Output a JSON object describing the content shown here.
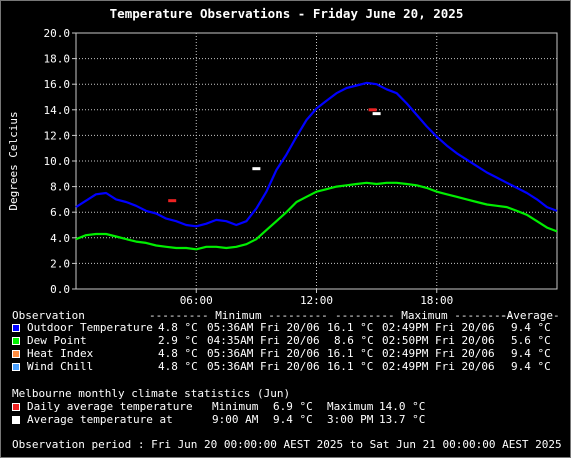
{
  "title": "Temperature Observations - Friday June 20, 2025",
  "ylabel": "Degrees Celcius",
  "colors": {
    "outdoor": "#0000ff",
    "dewpoint": "#00ee00",
    "heat_index": "#ff8c40",
    "wind_chill": "#4aa0ff",
    "daily_avg": "#ee2222",
    "avg_at": "#ffffff",
    "grid": "#c8c8c8"
  },
  "chart_data": {
    "type": "line",
    "title": "Temperature Observations - Friday June 20, 2025",
    "xlabel": "",
    "ylabel": "Degrees Celcius",
    "xlim": [
      0,
      24
    ],
    "ylim": [
      0,
      20
    ],
    "yticks": [
      "0.0",
      "2.0",
      "4.0",
      "6.0",
      "8.0",
      "10.0",
      "12.0",
      "14.0",
      "16.0",
      "18.0",
      "20.0"
    ],
    "xticks": [
      {
        "x": 6,
        "label": "06:00"
      },
      {
        "x": 12,
        "label": "12:00"
      },
      {
        "x": 18,
        "label": "18:00"
      }
    ],
    "grid": true,
    "series": [
      {
        "name": "Outdoor Temperature",
        "color_key": "outdoor",
        "x": [
          0,
          0.5,
          1,
          1.5,
          2,
          2.5,
          3,
          3.5,
          4,
          4.5,
          5,
          5.5,
          6,
          6.5,
          7,
          7.5,
          8,
          8.5,
          9,
          9.5,
          10,
          10.5,
          11,
          11.5,
          12,
          12.5,
          13,
          13.5,
          14,
          14.5,
          15,
          15.5,
          16,
          16.5,
          17,
          17.5,
          18,
          18.5,
          19,
          19.5,
          20,
          20.5,
          21,
          21.5,
          22,
          22.5,
          23,
          23.5,
          24
        ],
        "y": [
          6.4,
          6.9,
          7.4,
          7.5,
          7.0,
          6.8,
          6.5,
          6.1,
          5.9,
          5.5,
          5.3,
          5.0,
          4.9,
          5.1,
          5.4,
          5.3,
          5.0,
          5.3,
          6.3,
          7.6,
          9.3,
          10.5,
          11.9,
          13.2,
          14.1,
          14.7,
          15.3,
          15.7,
          15.9,
          16.1,
          16.0,
          15.6,
          15.3,
          14.5,
          13.6,
          12.7,
          11.9,
          11.2,
          10.6,
          10.1,
          9.6,
          9.1,
          8.7,
          8.3,
          7.9,
          7.5,
          7.0,
          6.4,
          6.1
        ]
      },
      {
        "name": "Dew Point",
        "color_key": "dewpoint",
        "x": [
          0,
          0.5,
          1,
          1.5,
          2,
          2.5,
          3,
          3.5,
          4,
          4.5,
          5,
          5.5,
          6,
          6.5,
          7,
          7.5,
          8,
          8.5,
          9,
          9.5,
          10,
          10.5,
          11,
          11.5,
          12,
          12.5,
          13,
          13.5,
          14,
          14.5,
          15,
          15.5,
          16,
          16.5,
          17,
          17.5,
          18,
          18.5,
          19,
          19.5,
          20,
          20.5,
          21,
          21.5,
          22,
          22.5,
          23,
          23.5,
          24
        ],
        "y": [
          3.9,
          4.2,
          4.3,
          4.3,
          4.1,
          3.9,
          3.7,
          3.6,
          3.4,
          3.3,
          3.2,
          3.2,
          3.1,
          3.3,
          3.3,
          3.2,
          3.3,
          3.5,
          3.9,
          4.6,
          5.3,
          6.0,
          6.8,
          7.2,
          7.6,
          7.8,
          8.0,
          8.1,
          8.2,
          8.3,
          8.2,
          8.3,
          8.3,
          8.2,
          8.1,
          7.9,
          7.6,
          7.4,
          7.2,
          7.0,
          6.8,
          6.6,
          6.5,
          6.4,
          6.1,
          5.8,
          5.3,
          4.8,
          4.5
        ]
      },
      {
        "name": "Heat Index",
        "color_key": "heat_index",
        "x": [],
        "y": []
      },
      {
        "name": "Wind Chill",
        "color_key": "wind_chill",
        "x": [],
        "y": []
      }
    ],
    "markers": [
      {
        "name": "Daily average temperature",
        "color_key": "daily_avg",
        "points": [
          {
            "x": 4.8,
            "y": 6.9
          },
          {
            "x": 14.8,
            "y": 14.0
          }
        ]
      },
      {
        "name": "Average temperature at",
        "color_key": "avg_at",
        "points": [
          {
            "x": 9.0,
            "y": 9.4
          },
          {
            "x": 15.0,
            "y": 13.7
          }
        ]
      }
    ]
  },
  "table": {
    "header": {
      "obs": "Observation",
      "min": "--------- Minimum ---------",
      "max": "--------- Maximum ---------",
      "avg": "-Average-"
    },
    "rows": [
      {
        "label": "Outdoor Temperature",
        "color_key": "outdoor",
        "min_val": "4.8 °C",
        "min_time": "05:36AM Fri 20/06",
        "max_val": "16.1 °C",
        "max_time": "02:49PM Fri 20/06",
        "avg": "9.4 °C"
      },
      {
        "label": "Dew Point",
        "color_key": "dewpoint",
        "min_val": "2.9 °C",
        "min_time": "04:35AM Fri 20/06",
        "max_val": "8.6 °C",
        "max_time": "02:50PM Fri 20/06",
        "avg": "5.6 °C"
      },
      {
        "label": "Heat Index",
        "color_key": "heat_index",
        "min_val": "4.8 °C",
        "min_time": "05:36AM Fri 20/06",
        "max_val": "16.1 °C",
        "max_time": "02:49PM Fri 20/06",
        "avg": "9.4 °C"
      },
      {
        "label": "Wind Chill",
        "color_key": "wind_chill",
        "min_val": "4.8 °C",
        "min_time": "05:36AM Fri 20/06",
        "max_val": "16.1 °C",
        "max_time": "02:49PM Fri 20/06",
        "avg": "9.4 °C"
      }
    ]
  },
  "climate": {
    "heading": "Melbourne monthly climate statistics (Jun)",
    "daily": {
      "label": "Daily average temperature",
      "min_label": "Minimum",
      "min": "6.9 °C",
      "max_label": "Maximum",
      "max": "14.0 °C"
    },
    "at": {
      "label": "Average temperature at",
      "t1": "9:00 AM",
      "v1": "9.4 °C",
      "t2": "3:00 PM",
      "v2": "13.7 °C"
    }
  },
  "period": "Observation period : Fri Jun 20 00:00:00 AEST 2025 to Sat Jun 21 00:00:00 AEST 2025"
}
